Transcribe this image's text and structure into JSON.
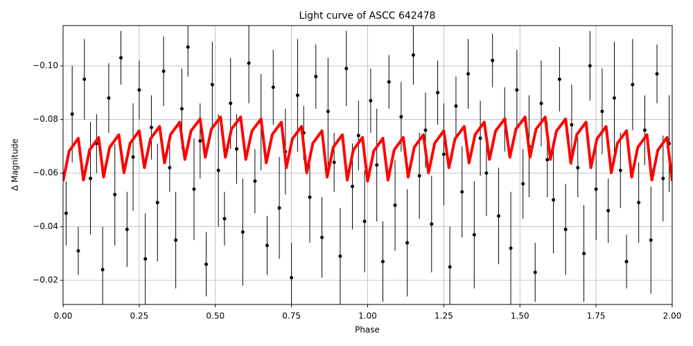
{
  "chart_data": {
    "type": "scatter",
    "title": "Light curve of ASCC 642478",
    "xlabel": "Phase",
    "ylabel": "Δ Magnitude",
    "xlim": [
      0,
      2
    ],
    "ylim": [
      -0.115,
      -0.011
    ],
    "y_inverted": true,
    "grid": true,
    "xticks": [
      {
        "value": 0,
        "label": "0.00"
      },
      {
        "value": 0.25,
        "label": "0.25"
      },
      {
        "value": 0.5,
        "label": "0.50"
      },
      {
        "value": 0.75,
        "label": "0.75"
      },
      {
        "value": 1,
        "label": "1.00"
      },
      {
        "value": 1.25,
        "label": "1.25"
      },
      {
        "value": 1.5,
        "label": "1.50"
      },
      {
        "value": 1.75,
        "label": "1.75"
      },
      {
        "value": 2,
        "label": "2.00"
      }
    ],
    "yticks": [
      {
        "value": -0.1,
        "label": "−0.10"
      },
      {
        "value": -0.08,
        "label": "−0.08"
      },
      {
        "value": -0.06,
        "label": "−0.06"
      },
      {
        "value": -0.04,
        "label": "−0.04"
      },
      {
        "value": -0.02,
        "label": "−0.02"
      }
    ],
    "series": [
      {
        "type": "errorbar",
        "color": "#000000",
        "x": [
          0.01,
          0.03,
          0.05,
          0.07,
          0.09,
          0.11,
          0.13,
          0.15,
          0.17,
          0.19,
          0.21,
          0.23,
          0.25,
          0.27,
          0.29,
          0.31,
          0.33,
          0.35,
          0.37,
          0.39,
          0.41,
          0.43,
          0.45,
          0.47,
          0.49,
          0.51,
          0.53,
          0.55,
          0.57,
          0.59,
          0.61,
          0.63,
          0.65,
          0.67,
          0.69,
          0.71,
          0.73,
          0.75,
          0.77,
          0.79,
          0.81,
          0.83,
          0.85,
          0.87,
          0.89,
          0.91,
          0.93,
          0.95,
          0.97,
          0.99,
          1.01,
          1.03,
          1.05,
          1.07,
          1.09,
          1.11,
          1.13,
          1.15,
          1.17,
          1.19,
          1.21,
          1.23,
          1.25,
          1.27,
          1.29,
          1.31,
          1.33,
          1.35,
          1.37,
          1.39,
          1.41,
          1.43,
          1.45,
          1.47,
          1.49,
          1.51,
          1.53,
          1.55,
          1.57,
          1.59,
          1.61,
          1.63,
          1.65,
          1.67,
          1.69,
          1.71,
          1.73,
          1.75,
          1.77,
          1.79,
          1.81,
          1.83,
          1.85,
          1.87,
          1.89,
          1.91,
          1.93,
          1.95,
          1.97,
          1.99
        ],
        "y": [
          -0.045,
          -0.082,
          -0.031,
          -0.095,
          -0.058,
          -0.071,
          -0.024,
          -0.088,
          -0.052,
          -0.103,
          -0.039,
          -0.066,
          -0.091,
          -0.028,
          -0.077,
          -0.049,
          -0.098,
          -0.062,
          -0.035,
          -0.084,
          -0.107,
          -0.054,
          -0.072,
          -0.026,
          -0.093,
          -0.061,
          -0.043,
          -0.086,
          -0.069,
          -0.038,
          -0.101,
          -0.057,
          -0.079,
          -0.033,
          -0.092,
          -0.047,
          -0.068,
          -0.021,
          -0.089,
          -0.075,
          -0.051,
          -0.096,
          -0.036,
          -0.083,
          -0.064,
          -0.029,
          -0.099,
          -0.055,
          -0.074,
          -0.042,
          -0.087,
          -0.063,
          -0.027,
          -0.094,
          -0.048,
          -0.081,
          -0.034,
          -0.104,
          -0.059,
          -0.076,
          -0.041,
          -0.09,
          -0.067,
          -0.025,
          -0.085,
          -0.053,
          -0.097,
          -0.037,
          -0.073,
          -0.06,
          -0.102,
          -0.044,
          -0.08,
          -0.032,
          -0.091,
          -0.056,
          -0.07,
          -0.023,
          -0.086,
          -0.065,
          -0.05,
          -0.095,
          -0.039,
          -0.078,
          -0.062,
          -0.03,
          -0.1,
          -0.054,
          -0.083,
          -0.046,
          -0.088,
          -0.061,
          -0.027,
          -0.093,
          -0.049,
          -0.076,
          -0.035,
          -0.097,
          -0.058,
          -0.071
        ],
        "yerr": [
          0.012,
          0.018,
          0.009,
          0.015,
          0.021,
          0.011,
          0.016,
          0.013,
          0.019,
          0.01,
          0.014,
          0.02,
          0.011,
          0.017,
          0.012,
          0.022,
          0.013,
          0.009,
          0.018,
          0.015,
          0.011,
          0.019,
          0.014,
          0.012,
          0.016,
          0.021,
          0.01,
          0.017,
          0.013,
          0.02,
          0.015,
          0.012,
          0.018,
          0.011,
          0.014,
          0.019,
          0.016,
          0.013,
          0.021,
          0.01,
          0.017,
          0.012,
          0.015,
          0.02,
          0.011,
          0.018,
          0.014,
          0.016,
          0.013,
          0.019,
          0.012,
          0.021,
          0.015,
          0.01,
          0.017,
          0.013,
          0.02,
          0.011,
          0.016,
          0.014,
          0.018,
          0.012,
          0.019,
          0.015,
          0.011,
          0.017,
          0.013,
          0.02,
          0.014,
          0.016,
          0.01,
          0.018,
          0.012,
          0.021,
          0.015,
          0.013,
          0.019,
          0.011,
          0.016,
          0.014,
          0.02,
          0.012,
          0.017,
          0.015,
          0.011,
          0.018,
          0.013,
          0.019,
          0.016,
          0.012,
          0.021,
          0.014,
          0.01,
          0.017,
          0.015,
          0.013,
          0.02,
          0.011,
          0.016,
          0.018
        ]
      },
      {
        "type": "line",
        "color": "#ff0000",
        "x": [
          0,
          0.02,
          0.05,
          0.067,
          0.087,
          0.117,
          0.133,
          0.153,
          0.183,
          0.2,
          0.22,
          0.25,
          0.267,
          0.287,
          0.317,
          0.333,
          0.353,
          0.383,
          0.4,
          0.42,
          0.45,
          0.467,
          0.487,
          0.517,
          0.533,
          0.553,
          0.583,
          0.6,
          0.62,
          0.65,
          0.667,
          0.687,
          0.717,
          0.733,
          0.753,
          0.783,
          0.8,
          0.82,
          0.85,
          0.867,
          0.887,
          0.917,
          0.933,
          0.953,
          0.983,
          1,
          1.02,
          1.05,
          1.067,
          1.087,
          1.117,
          1.133,
          1.153,
          1.183,
          1.2,
          1.22,
          1.25,
          1.267,
          1.287,
          1.317,
          1.333,
          1.353,
          1.383,
          1.4,
          1.42,
          1.45,
          1.467,
          1.487,
          1.517,
          1.533,
          1.553,
          1.583,
          1.6,
          1.62,
          1.65,
          1.667,
          1.687,
          1.717,
          1.733,
          1.753,
          1.783,
          1.8,
          1.82,
          1.85,
          1.867,
          1.887,
          1.917,
          1.933,
          1.953,
          1.983,
          2
        ],
        "y": [
          -0.057,
          -0.0682,
          -0.073,
          -0.0574,
          -0.0686,
          -0.0733,
          -0.0585,
          -0.0696,
          -0.0743,
          -0.0601,
          -0.0711,
          -0.0758,
          -0.062,
          -0.0728,
          -0.0774,
          -0.0638,
          -0.0744,
          -0.079,
          -0.0651,
          -0.0757,
          -0.0802,
          -0.0659,
          -0.0764,
          -0.0809,
          -0.0659,
          -0.0764,
          -0.0809,
          -0.0651,
          -0.0757,
          -0.0802,
          -0.0638,
          -0.0744,
          -0.079,
          -0.062,
          -0.0728,
          -0.0774,
          -0.0601,
          -0.0711,
          -0.0758,
          -0.0585,
          -0.0696,
          -0.0743,
          -0.0574,
          -0.0686,
          -0.0733,
          -0.057,
          -0.0682,
          -0.073,
          -0.0574,
          -0.0686,
          -0.0733,
          -0.0585,
          -0.0696,
          -0.0743,
          -0.0601,
          -0.0711,
          -0.0758,
          -0.062,
          -0.0728,
          -0.0774,
          -0.0638,
          -0.0744,
          -0.079,
          -0.0651,
          -0.0757,
          -0.0802,
          -0.0659,
          -0.0764,
          -0.0809,
          -0.0659,
          -0.0764,
          -0.0809,
          -0.0651,
          -0.0757,
          -0.0802,
          -0.0638,
          -0.0744,
          -0.079,
          -0.062,
          -0.0728,
          -0.0774,
          -0.0601,
          -0.0711,
          -0.0758,
          -0.0585,
          -0.0696,
          -0.0743,
          -0.0574,
          -0.0686,
          -0.0733,
          -0.057
        ]
      }
    ]
  }
}
